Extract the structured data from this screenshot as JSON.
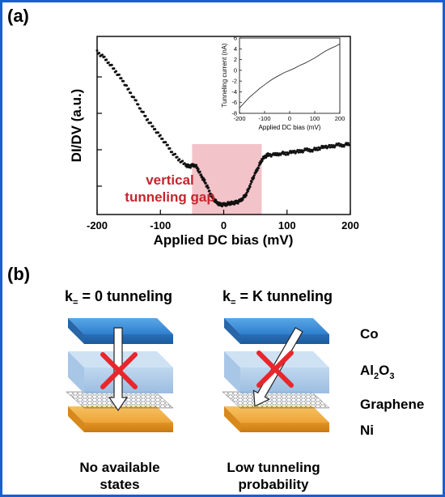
{
  "panel_a": {
    "label": "(a)",
    "gap_annotation": [
      "vertical",
      "tunneling gap"
    ],
    "chart_data": {
      "type": "scatter",
      "xlabel": "Applied DC bias (mV)",
      "ylabel": "DI/DV (a.u.)",
      "xlim": [
        -200,
        200
      ],
      "xticks": [
        "-200",
        "-100",
        "0",
        "100",
        "200"
      ],
      "y_units": "arbitrary",
      "gap_region_x": [
        -50,
        60
      ],
      "series": [
        {
          "x": [
            -200,
            -190,
            -180,
            -170,
            -160,
            -150,
            -140,
            -130,
            -120,
            -110,
            -100,
            -90,
            -80,
            -70,
            -60,
            -55,
            -50,
            -45,
            -40,
            -35,
            -30,
            -25,
            -20,
            -15,
            -10,
            -5,
            0,
            5,
            10,
            15,
            20,
            25,
            30,
            35,
            40,
            45,
            50,
            55,
            60,
            65,
            70,
            80,
            90,
            100,
            110,
            120,
            130,
            140,
            150,
            160,
            170,
            180,
            190,
            200
          ],
          "y": [
            0.93,
            0.9,
            0.86,
            0.81,
            0.76,
            0.7,
            0.64,
            0.58,
            0.52,
            0.47,
            0.42,
            0.37,
            0.32,
            0.28,
            0.25,
            0.24,
            0.245,
            0.25,
            0.22,
            0.18,
            0.15,
            0.11,
            0.07,
            0.04,
            0.02,
            0.01,
            0.01,
            0.015,
            0.02,
            0.02,
            0.025,
            0.03,
            0.05,
            0.07,
            0.11,
            0.16,
            0.2,
            0.24,
            0.28,
            0.3,
            0.31,
            0.31,
            0.32,
            0.32,
            0.33,
            0.33,
            0.34,
            0.34,
            0.35,
            0.36,
            0.36,
            0.37,
            0.37,
            0.38
          ]
        }
      ]
    },
    "inset": {
      "chart_data": {
        "type": "line",
        "xlabel": "Applied DC bias (mV)",
        "ylabel": "Tunneling current (nA)",
        "xlim": [
          -200,
          200
        ],
        "ylim": [
          -8,
          6
        ],
        "xticks": [
          "-200",
          "-100",
          "0",
          "100",
          "200"
        ],
        "yticks": [
          "-8",
          "-6",
          "-4",
          "-2",
          "0",
          "2",
          "4",
          "6"
        ],
        "series": [
          {
            "x": [
              -200,
              -180,
              -160,
              -140,
              -120,
              -100,
              -80,
              -60,
              -40,
              -20,
              0,
              20,
              40,
              60,
              80,
              100,
              120,
              140,
              160,
              180,
              200
            ],
            "y": [
              -7.0,
              -6.0,
              -5.0,
              -4.2,
              -3.4,
              -2.7,
              -2.0,
              -1.4,
              -0.9,
              -0.4,
              0.0,
              0.4,
              0.9,
              1.3,
              1.8,
              2.3,
              2.9,
              3.5,
              4.0,
              4.4,
              4.9
            ]
          }
        ]
      }
    }
  },
  "panel_b": {
    "label": "(b)",
    "left_condition": {
      "prefix": "k",
      "subscript": "=",
      "suffix": " = 0 tunneling"
    },
    "right_condition": {
      "prefix": "k",
      "subscript": "=",
      "suffix": " = K tunneling"
    },
    "layers": {
      "co": "Co",
      "al2o3": {
        "base": "Al",
        "sub1": "2",
        "mid": "O",
        "sub2": "3"
      },
      "graphene": "Graphene",
      "ni": "Ni"
    },
    "left_caption": [
      "No available",
      "states"
    ],
    "right_caption": [
      "Low tunneling",
      "probability"
    ],
    "colors": {
      "co": "#3f8fd8",
      "al2o3": "#a9c7e6",
      "ni": "#f0ad45",
      "cross": "#e8262c",
      "gap": "#f0b8bf"
    }
  }
}
